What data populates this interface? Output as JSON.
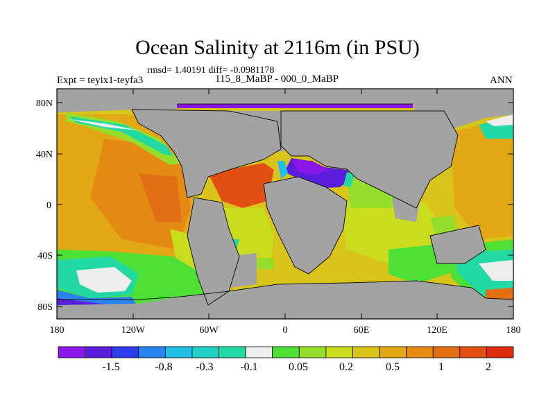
{
  "header": {
    "title": "Ocean Salinity at 2116m (in PSU)",
    "stats": "rmsd= 1.40191 diff= -0.0981178",
    "left_label": "Expt = teyix1-teyfa3",
    "center_label": "115_8_MaBP - 000_0_MaBP",
    "right_label": "ANN"
  },
  "axes": {
    "lat_ticks": [
      "80N",
      "40N",
      "0",
      "40S",
      "80S"
    ],
    "lon_ticks": [
      "180",
      "120W",
      "60W",
      "0",
      "60E",
      "120E",
      "180"
    ]
  },
  "colorbar": {
    "labels": [
      "-1.5",
      "-0.8",
      "-0.3",
      "-0.1",
      "0.05",
      "0.2",
      "0.5",
      "1",
      "2"
    ],
    "colors": [
      "#8a16e8",
      "#5a1ddc",
      "#2e3cf0",
      "#2a84f0",
      "#22bfe6",
      "#1fd2c5",
      "#22d9a3",
      "#eeeeee",
      "#4fe036",
      "#96de2c",
      "#c9dc1e",
      "#dcc51b",
      "#e3a815",
      "#e58b14",
      "#e46e14",
      "#e24f12",
      "#dd2e0e"
    ]
  },
  "colors": {
    "land": "#a3a3a3",
    "frame": "#000000"
  }
}
